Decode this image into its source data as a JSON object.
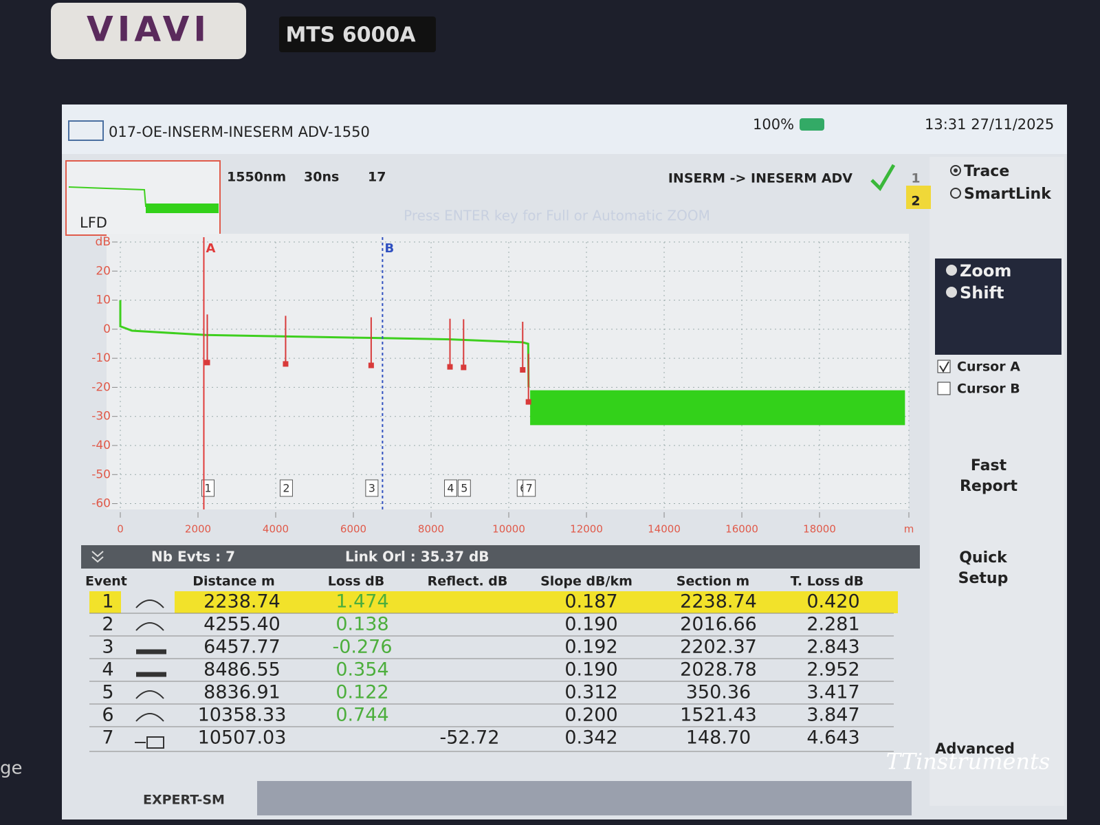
{
  "device": {
    "brand": "VIAVI",
    "model": "MTS 6000A"
  },
  "header": {
    "file": "017-OE-INSERM-INESERM ADV-1550",
    "battery": "100%",
    "time": "13:31  27/11/2025"
  },
  "info": {
    "wavelength": "1550nm",
    "pulse": "30ns",
    "averages": "17",
    "link": "INSERM -> INESERM ADV",
    "thumbnail": "LFD",
    "hint": "Press ENTER key for Full or Automatic ZOOM"
  },
  "chart_data": {
    "type": "line",
    "xlim": [
      0,
      20300
    ],
    "ylim": [
      -62,
      30
    ],
    "xticks": [
      0,
      2000,
      4000,
      6000,
      8000,
      10000,
      12000,
      14000,
      16000,
      18000,
      {
        "value": 20300,
        "label": "m"
      }
    ],
    "yticks": [
      -60,
      -50,
      -40,
      -30,
      -20,
      -10,
      0,
      10,
      20,
      {
        "value": 30,
        "label": "dB"
      }
    ],
    "grid": true,
    "series": [
      {
        "name": "Trace",
        "color": "#3ecf1e",
        "x": [
          0,
          0,
          300,
          2200,
          4300,
          6500,
          8500,
          10350,
          10500,
          10510
        ],
        "values": [
          10,
          1,
          -0.5,
          -2,
          -2.5,
          -3,
          -3.5,
          -4.5,
          -5,
          -20
        ]
      }
    ],
    "noise": {
      "xlim": [
        10550,
        20200
      ],
      "ylim": [
        -33,
        -21
      ],
      "color": "#33d11a"
    },
    "cursors": [
      {
        "label": "A",
        "x": 2150,
        "color": "#e03a3a"
      },
      {
        "label": "B",
        "x": 6750,
        "color": "#3050c0"
      }
    ]
  },
  "summary": {
    "events": "Nb Evts : 7",
    "orl": "Link Orl :  35.37 dB"
  },
  "table": {
    "columns": [
      "Event",
      "Distance  m",
      "Loss dB",
      "Reflect. dB",
      "Slope  dB/km",
      "Section m",
      "T. Loss dB"
    ],
    "rows": [
      [
        "1",
        "2238.74",
        "1.474",
        "",
        "0.187",
        "2238.74",
        "0.420"
      ],
      [
        "2",
        "4255.40",
        "0.138",
        "",
        "0.190",
        "2016.66",
        "2.281"
      ],
      [
        "3",
        "6457.77",
        "-0.276",
        "",
        "0.192",
        "2202.37",
        "2.843"
      ],
      [
        "4",
        "8486.55",
        "0.354",
        "",
        "0.190",
        "2028.78",
        "2.952"
      ],
      [
        "5",
        "8836.91",
        "0.122",
        "",
        "0.312",
        "350.36",
        "3.417"
      ],
      [
        "6",
        "10358.33",
        "0.744",
        "",
        "0.200",
        "1521.43",
        "3.847"
      ],
      [
        "7",
        "10507.03",
        "",
        "-52.72",
        "0.342",
        "148.70",
        "4.643"
      ]
    ]
  },
  "side": {
    "trace": "Trace",
    "smartlink": "SmartLink",
    "tab1": "1",
    "tab2": "2",
    "zoom": "Zoom",
    "shift": "Shift",
    "cursor_a": "Cursor A",
    "cursor_b": "Cursor B",
    "fast_report": [
      "Fast",
      "Report"
    ],
    "quick_setup": [
      "Quick",
      "Setup"
    ],
    "advanced": "Advanced"
  },
  "footer": {
    "mode": "EXPERT-SM",
    "watermark": "TTinstruments",
    "edge": "ge"
  }
}
